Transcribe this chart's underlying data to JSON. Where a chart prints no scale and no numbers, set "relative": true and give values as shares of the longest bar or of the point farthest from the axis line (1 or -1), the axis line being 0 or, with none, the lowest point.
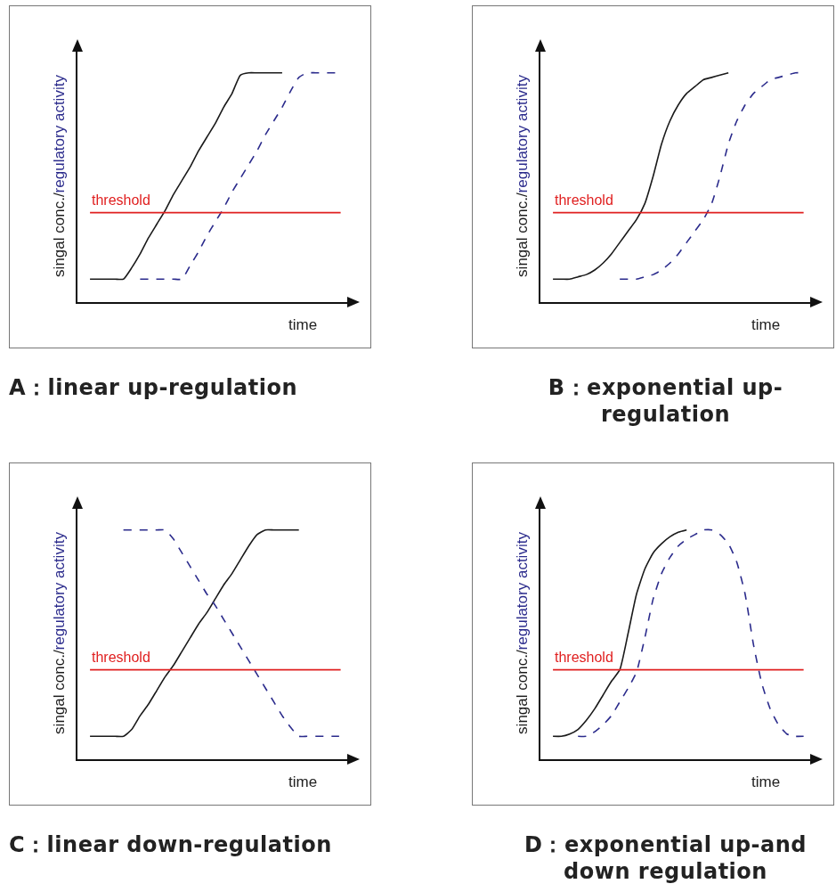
{
  "chart_data": [
    {
      "type": "line",
      "relative": true,
      "title": "A：linear up-regulation",
      "ylabel": "singal conc./regulatory activity",
      "xlabel": "time",
      "categories": [
        null,
        null,
        null,
        null,
        null,
        null,
        null,
        null,
        null,
        null,
        null,
        null,
        null,
        null,
        null,
        null,
        null,
        null,
        null,
        null,
        null,
        null,
        null,
        null,
        null,
        null,
        null,
        null,
        null,
        null,
        null
      ],
      "series": [
        {
          "color": "#1a1a1a",
          "line_style": "solid",
          "values": [
            0.1,
            0.1,
            0.1,
            0.1,
            0.1,
            0.15,
            0.21,
            0.28,
            0.34,
            0.4,
            0.47,
            0.53,
            0.59,
            0.66,
            0.72,
            0.78,
            0.85,
            0.91,
            0.99,
            1,
            1,
            1,
            1,
            1,
            null,
            null,
            null,
            null,
            null,
            null,
            null
          ]
        },
        {
          "color": "#2b2b8c",
          "line_style": "dashed",
          "values": [
            null,
            null,
            null,
            null,
            null,
            null,
            0.1,
            0.1,
            0.1,
            0.1,
            0.1,
            0.1,
            0.16,
            0.22,
            0.29,
            0.35,
            0.41,
            0.48,
            0.54,
            0.6,
            0.66,
            0.73,
            0.79,
            0.85,
            0.92,
            0.98,
            1,
            1,
            1,
            1,
            1
          ]
        }
      ],
      "ref_lines": [
        {
          "axis": "y",
          "value": 0.39,
          "label": "threshold",
          "color": "#e02020"
        }
      ]
    },
    {
      "type": "line",
      "relative": true,
      "title": "B：exponential up-regulation",
      "ylabel": "singal conc./regulatory activity",
      "xlabel": "time",
      "categories": [
        null,
        null,
        null,
        null,
        null,
        null,
        null,
        null,
        null,
        null,
        null,
        null,
        null,
        null,
        null,
        null,
        null,
        null,
        null,
        null,
        null,
        null,
        null,
        null,
        null,
        null,
        null,
        null,
        null,
        null,
        null
      ],
      "series": [
        {
          "color": "#1a1a1a",
          "line_style": "solid",
          "values": [
            0.1,
            0.1,
            0.1,
            0.11,
            0.12,
            0.14,
            0.17,
            0.21,
            0.26,
            0.31,
            0.36,
            0.43,
            0.55,
            0.69,
            0.79,
            0.86,
            0.91,
            0.94,
            0.97,
            0.98,
            0.99,
            1,
            null,
            null,
            null,
            null,
            null,
            null,
            null,
            null,
            null
          ]
        },
        {
          "color": "#2b2b8c",
          "line_style": "dashed",
          "values": [
            null,
            null,
            null,
            null,
            null,
            null,
            null,
            null,
            0.1,
            0.1,
            0.1,
            0.11,
            0.12,
            0.14,
            0.17,
            0.21,
            0.26,
            0.31,
            0.36,
            0.43,
            0.55,
            0.69,
            0.79,
            0.86,
            0.91,
            0.94,
            0.97,
            0.98,
            0.99,
            1,
            1
          ]
        }
      ],
      "ref_lines": [
        {
          "axis": "y",
          "value": 0.39,
          "label": "threshold",
          "color": "#e02020"
        }
      ]
    },
    {
      "type": "line",
      "relative": true,
      "title": "C：linear down-regulation",
      "ylabel": "singal conc./regulatory activity",
      "xlabel": "time",
      "categories": [
        null,
        null,
        null,
        null,
        null,
        null,
        null,
        null,
        null,
        null,
        null,
        null,
        null,
        null,
        null,
        null,
        null,
        null,
        null,
        null,
        null,
        null,
        null,
        null,
        null,
        null,
        null,
        null,
        null,
        null,
        null
      ],
      "series": [
        {
          "color": "#1a1a1a",
          "line_style": "solid",
          "values": [
            0.1,
            0.1,
            0.1,
            0.1,
            0.1,
            0.13,
            0.19,
            0.24,
            0.3,
            0.36,
            0.41,
            0.47,
            0.53,
            0.59,
            0.64,
            0.7,
            0.76,
            0.81,
            0.87,
            0.93,
            0.98,
            1,
            1,
            1,
            1,
            1,
            null,
            null,
            null,
            null,
            null
          ]
        },
        {
          "color": "#2b2b8c",
          "line_style": "dashed",
          "values": [
            null,
            null,
            null,
            null,
            1,
            1,
            1,
            1,
            1,
            1,
            0.96,
            0.9,
            0.84,
            0.78,
            0.72,
            0.67,
            0.61,
            0.55,
            0.49,
            0.43,
            0.37,
            0.31,
            0.25,
            0.19,
            0.14,
            0.1,
            0.1,
            0.1,
            0.1,
            0.1,
            0.1
          ]
        }
      ],
      "ref_lines": [
        {
          "axis": "y",
          "value": 0.39,
          "label": "threshold",
          "color": "#e02020"
        }
      ]
    },
    {
      "type": "line",
      "relative": true,
      "title": "D：exponential up-and down regulation",
      "ylabel": "singal conc./regulatory activity",
      "xlabel": "time",
      "categories": [
        null,
        null,
        null,
        null,
        null,
        null,
        null,
        null,
        null,
        null,
        null,
        null,
        null,
        null,
        null,
        null,
        null,
        null,
        null,
        null,
        null,
        null,
        null,
        null,
        null,
        null,
        null,
        null,
        null,
        null,
        null
      ],
      "series": [
        {
          "color": "#1a1a1a",
          "line_style": "solid",
          "values": [
            0.1,
            0.1,
            0.11,
            0.13,
            0.17,
            0.22,
            0.28,
            0.34,
            0.39,
            0.55,
            0.72,
            0.83,
            0.9,
            0.94,
            0.97,
            0.99,
            1,
            null,
            null,
            null,
            null,
            null,
            null,
            null,
            null,
            null,
            null,
            null,
            null,
            null,
            null
          ]
        },
        {
          "color": "#2b2b8c",
          "line_style": "dashed",
          "values": [
            null,
            null,
            null,
            0.1,
            0.1,
            0.12,
            0.15,
            0.19,
            0.25,
            0.31,
            0.38,
            0.53,
            0.7,
            0.81,
            0.88,
            0.93,
            0.96,
            0.98,
            1,
            1,
            0.98,
            0.94,
            0.86,
            0.72,
            0.5,
            0.33,
            0.22,
            0.15,
            0.11,
            0.1,
            0.1
          ]
        }
      ],
      "ref_lines": [
        {
          "axis": "y",
          "value": 0.39,
          "label": "threshold",
          "color": "#e02020"
        }
      ]
    }
  ]
}
